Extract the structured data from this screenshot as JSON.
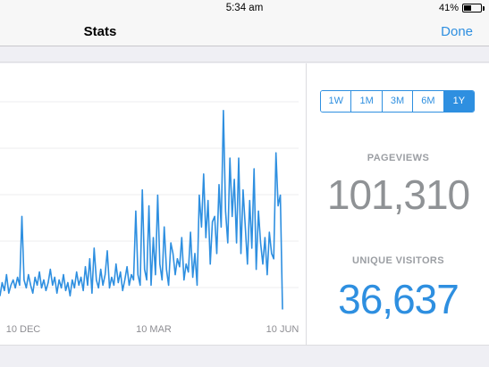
{
  "status_bar": {
    "time": "5:34 am",
    "battery_percent": "41%",
    "battery_level": 0.41
  },
  "nav": {
    "title": "Stats",
    "done_label": "Done"
  },
  "period_selector": {
    "options": [
      "1W",
      "1M",
      "3M",
      "6M",
      "1Y"
    ],
    "selected": "1Y"
  },
  "metrics": {
    "pageviews_label": "PAGEVIEWS",
    "pageviews_value": "101,310",
    "unique_visitors_label": "UNIQUE VISITORS",
    "unique_visitors_value": "36,637"
  },
  "colors": {
    "accent": "#2e8fe0",
    "muted_value": "#8f9295"
  },
  "chart_data": {
    "type": "line",
    "title": "",
    "xlabel": "",
    "ylabel": "",
    "x_tick_labels": [
      "10 DEC",
      "10 MAR",
      "10 JUN"
    ],
    "grid": true,
    "series": [
      {
        "values": [
          40,
          65,
          50,
          80,
          45,
          60,
          70,
          55,
          75,
          60,
          190,
          70,
          55,
          80,
          60,
          45,
          75,
          60,
          85,
          55,
          70,
          50,
          65,
          90,
          60,
          75,
          45,
          70,
          55,
          80,
          50,
          65,
          40,
          70,
          55,
          85,
          60,
          75,
          50,
          95,
          60,
          110,
          45,
          130,
          70,
          55,
          90,
          60,
          80,
          125,
          55,
          75,
          60,
          100,
          65,
          85,
          50,
          70,
          95,
          60,
          80,
          70,
          200,
          80,
          60,
          240,
          90,
          70,
          210,
          60,
          150,
          80,
          230,
          100,
          70,
          170,
          90,
          60,
          140,
          120,
          80,
          110,
          95,
          150,
          70,
          100,
          85,
          160,
          75,
          120,
          60,
          230,
          170,
          270,
          150,
          220,
          100,
          180,
          190,
          120,
          250,
          170,
          390,
          200,
          140,
          300,
          190,
          260,
          140,
          300,
          120,
          240,
          170,
          100,
          220,
          130,
          280,
          90,
          200,
          140,
          100,
          150,
          80,
          160,
          120,
          110,
          310,
          210,
          230,
          15
        ]
      }
    ]
  }
}
